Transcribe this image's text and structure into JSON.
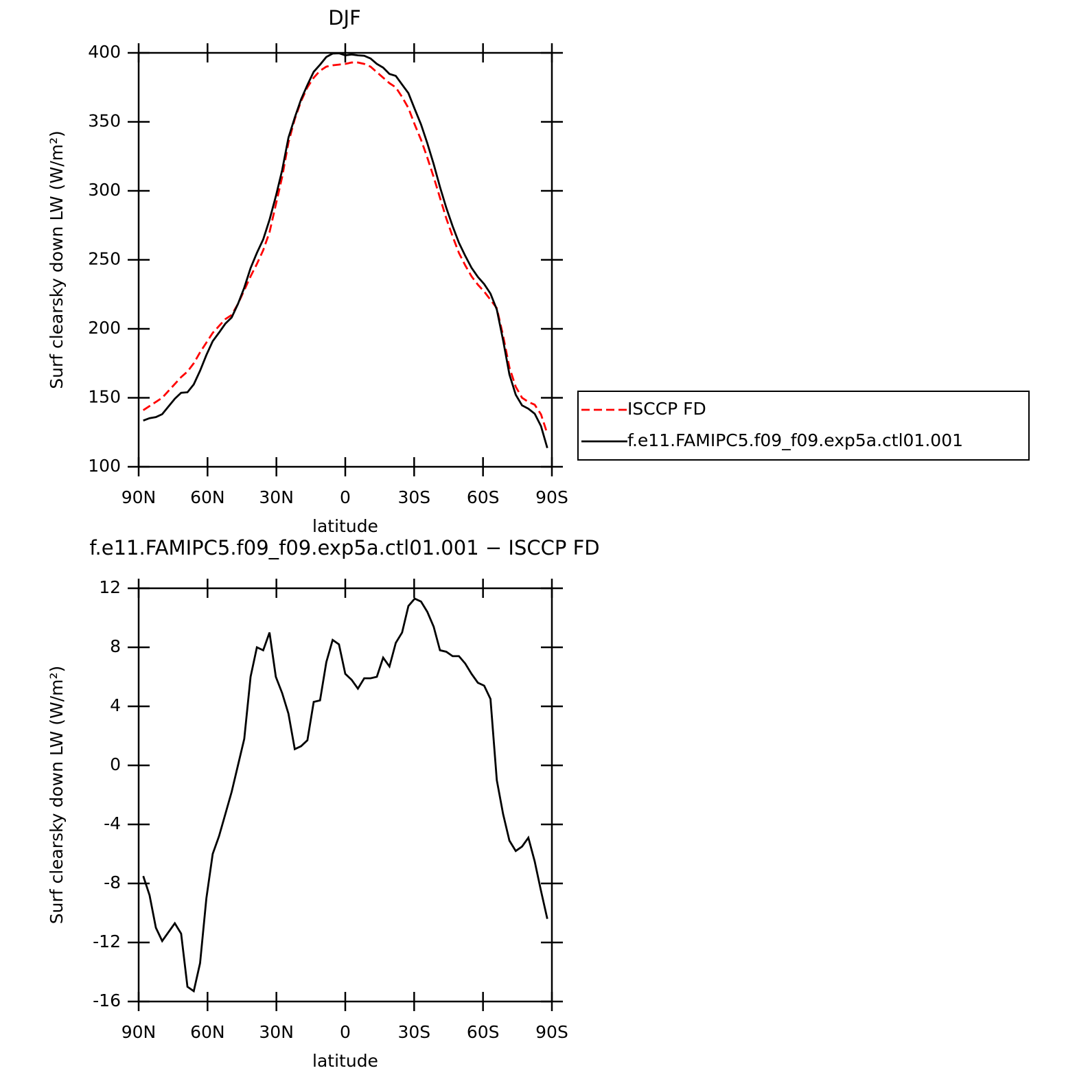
{
  "chart_data": [
    {
      "type": "line",
      "title": "DJF",
      "xlabel": "latitude",
      "ylabel": "Surf clearsky down LW (W/m²)",
      "x": [
        88,
        85.25,
        82.5,
        79.75,
        77,
        74.25,
        71.5,
        68.75,
        66,
        63.25,
        60.5,
        57.75,
        55,
        52.25,
        49.5,
        46.75,
        44,
        41.25,
        38.5,
        35.75,
        33,
        30.25,
        27.5,
        24.75,
        22,
        19.25,
        16.5,
        13.75,
        11,
        8.25,
        5.5,
        2.75,
        0,
        -2.75,
        -5.5,
        -8.25,
        -11,
        -13.75,
        -16.5,
        -19.25,
        -22,
        -24.75,
        -27.5,
        -30.25,
        -33,
        -35.75,
        -38.5,
        -41.25,
        -44,
        -46.75,
        -49.5,
        -52.25,
        -55,
        -57.75,
        -60.5,
        -63.25,
        -66,
        -68.75,
        -71.5,
        -74.25,
        -77,
        -79.75,
        -82.5,
        -85.25,
        -88
      ],
      "series": [
        {
          "name": "ISCCP FD",
          "color": "#ff0000",
          "dash": true,
          "values": [
            141,
            144,
            147,
            150,
            155,
            160,
            165,
            169,
            175,
            183,
            190,
            197,
            202,
            207,
            210,
            218,
            228,
            238,
            247,
            257,
            270,
            290,
            310,
            335,
            352,
            365,
            375,
            382,
            387,
            390,
            391,
            391.5,
            392,
            393,
            393,
            392,
            390,
            386,
            382,
            378,
            375,
            368,
            360,
            348,
            337,
            324,
            310,
            295,
            280,
            267,
            255,
            246,
            238,
            232,
            227,
            221,
            215,
            195,
            172,
            158,
            150,
            147,
            145,
            138,
            124
          ]
        },
        {
          "name": "f.e11.FAMIPC5.f09_f09.exp5a.ctl01.001",
          "color": "#000000",
          "dash": false,
          "values": [
            133.5,
            135.2,
            136,
            138.1,
            143.7,
            149.3,
            153.6,
            154,
            159.7,
            169.6,
            181,
            191,
            197.2,
            203.7,
            208.2,
            218,
            229.8,
            244,
            255,
            264.8,
            279,
            296,
            314.9,
            338.5,
            353.1,
            366.3,
            376.7,
            386.3,
            391.4,
            397,
            399.5,
            399.7,
            398.2,
            398.8,
            398.2,
            397.9,
            395.9,
            392,
            389.3,
            384.7,
            383.3,
            377,
            370.8,
            359.3,
            348.1,
            334.4,
            319.4,
            302.8,
            287.7,
            274.4,
            262.4,
            252.9,
            244.2,
            237.6,
            232.4,
            225.5,
            214,
            191.7,
            166.9,
            152.2,
            144.5,
            142.1,
            138.5,
            129.5,
            113.6
          ]
        }
      ],
      "xlim": [
        90,
        -90
      ],
      "xticks": [
        {
          "value": 90,
          "label": "90N"
        },
        {
          "value": 60,
          "label": "60N"
        },
        {
          "value": 30,
          "label": "30N"
        },
        0,
        {
          "value": -30,
          "label": "30S"
        },
        {
          "value": -60,
          "label": "60S"
        },
        {
          "value": -90,
          "label": "90S"
        }
      ],
      "ylim": [
        100,
        400
      ],
      "yticks": [
        100,
        150,
        200,
        250,
        300,
        350,
        400
      ],
      "legend": "right"
    },
    {
      "type": "line",
      "title": "f.e11.FAMIPC5.f09_f09.exp5a.ctl01.001 − ISCCP FD",
      "xlabel": "latitude",
      "ylabel": "Surf clearsky down LW (W/m²)",
      "x": [
        88,
        85.25,
        82.5,
        79.75,
        77,
        74.25,
        71.5,
        68.75,
        66,
        63.25,
        60.5,
        57.75,
        55,
        52.25,
        49.5,
        46.75,
        44,
        41.25,
        38.5,
        35.75,
        33,
        30.25,
        27.5,
        24.75,
        22,
        19.25,
        16.5,
        13.75,
        11,
        8.25,
        5.5,
        2.75,
        0,
        -2.75,
        -5.5,
        -8.25,
        -11,
        -13.75,
        -16.5,
        -19.25,
        -22,
        -24.75,
        -27.5,
        -30.25,
        -33,
        -35.75,
        -38.5,
        -41.25,
        -44,
        -46.75,
        -49.5,
        -52.25,
        -55,
        -57.75,
        -60.5,
        -63.25,
        -66,
        -68.75,
        -71.5,
        -74.25,
        -77,
        -79.75,
        -82.5,
        -85.25,
        -88
      ],
      "values": [
        -7.5,
        -8.8,
        -11,
        -11.9,
        -11.3,
        -10.7,
        -11.4,
        -15,
        -15.3,
        -13.4,
        -9,
        -6,
        -4.8,
        -3.3,
        -1.8,
        0,
        1.8,
        6,
        8,
        7.8,
        9,
        6,
        4.9,
        3.5,
        1.1,
        1.3,
        1.7,
        4.3,
        4.4,
        7,
        8.5,
        8.2,
        6.2,
        5.8,
        5.2,
        5.9,
        5.9,
        6,
        7.3,
        6.7,
        8.3,
        9,
        10.8,
        11.3,
        11.1,
        10.4,
        9.4,
        7.8,
        7.7,
        7.4,
        7.4,
        6.9,
        6.2,
        5.6,
        5.4,
        4.5,
        -1,
        -3.3,
        -5.1,
        -5.8,
        -5.5,
        -4.9,
        -6.5,
        -8.5,
        -10.4
      ],
      "color": "#000000",
      "xlim": [
        90,
        -90
      ],
      "xticks": [
        {
          "value": 90,
          "label": "90N"
        },
        {
          "value": 60,
          "label": "60N"
        },
        {
          "value": 30,
          "label": "30N"
        },
        0,
        {
          "value": -30,
          "label": "30S"
        },
        {
          "value": -60,
          "label": "60S"
        },
        {
          "value": -90,
          "label": "90S"
        }
      ],
      "ylim": [
        -16,
        12
      ],
      "yticks": [
        -16,
        -12,
        -8,
        -4,
        0,
        4,
        8,
        12
      ]
    }
  ]
}
